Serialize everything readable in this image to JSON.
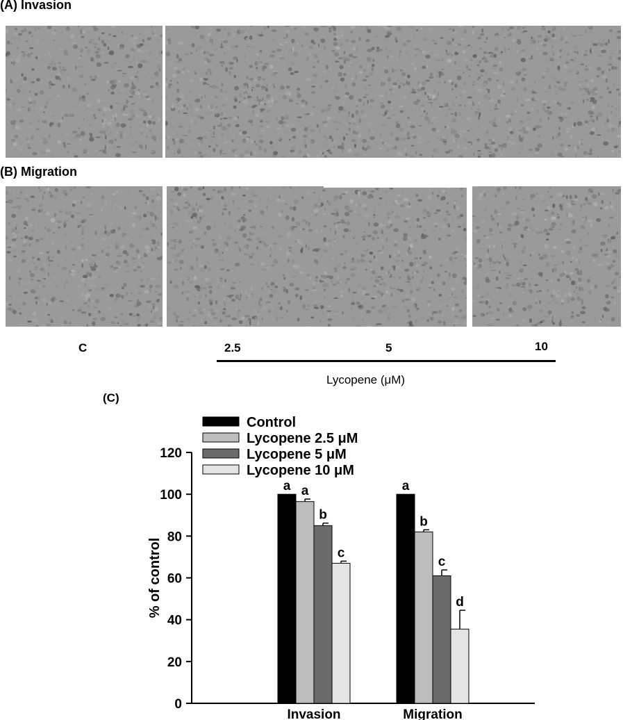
{
  "panels": {
    "invasion_label": "(A) Invasion",
    "migration_label": "(B) Migration",
    "chart_label": "(C)"
  },
  "concentrations": [
    "C",
    "2.5",
    "5",
    "10"
  ],
  "treatment_label": "Lycopene (μM)",
  "chart_data": {
    "type": "bar",
    "categories": [
      "Invasion",
      "Migration"
    ],
    "series": [
      {
        "name": "Control",
        "values": [
          100,
          100
        ],
        "errors": [
          0,
          0
        ],
        "letters": [
          "a",
          "a"
        ],
        "color": "#000000"
      },
      {
        "name": "Lycopene 2.5 μM",
        "values": [
          96.5,
          82
        ],
        "errors": [
          1.2,
          1.0
        ],
        "letters": [
          "a",
          "b"
        ],
        "color": "#bdbdbd"
      },
      {
        "name": "Lycopene 5 μM",
        "values": [
          85,
          61
        ],
        "errors": [
          1.2,
          2.8
        ],
        "letters": [
          "b",
          "c"
        ],
        "color": "#6b6b6b"
      },
      {
        "name": "Lycopene 10 μM",
        "values": [
          67,
          35.5
        ],
        "errors": [
          1.0,
          9.0
        ],
        "letters": [
          "c",
          "d"
        ],
        "color": "#e4e4e4"
      }
    ],
    "ylabel": "% of control",
    "ylim": [
      0,
      120
    ],
    "yticks": [
      0,
      20,
      40,
      60,
      80,
      100,
      120
    ],
    "grid": false,
    "legend": "top-left"
  }
}
